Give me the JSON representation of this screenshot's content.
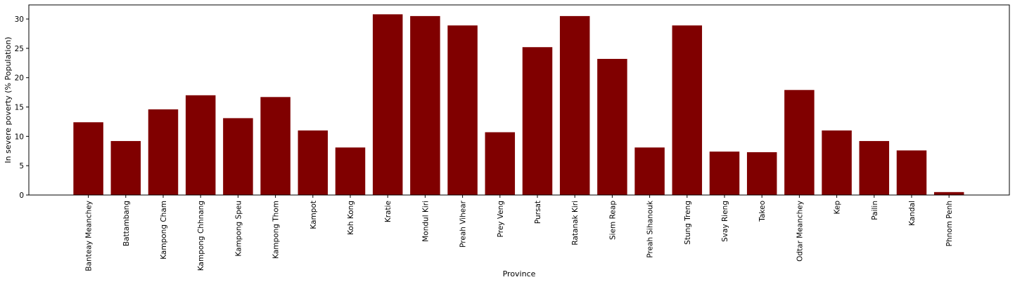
{
  "chart_data": {
    "type": "bar",
    "xlabel": "Province",
    "ylabel": "In severe poverty (% Population)",
    "categories": [
      "Banteay Meanchey",
      "Battambang",
      "Kampong Cham",
      "Kampong Chhnang",
      "Kampong Speu",
      "Kampong Thom",
      "Kampot",
      "Koh Kong",
      "Kratie",
      "Mondul Kiri",
      "Preah Vihear",
      "Prey Veng",
      "Pursat",
      "Ratanak Kiri",
      "Siem Reap",
      "Preah Sihanouk",
      "Stung Treng",
      "Svay Rieng",
      "Takeo",
      "Odtar Meanchey",
      "Kep",
      "Pailin",
      "Kandal",
      "Phnom Penh"
    ],
    "values": [
      12.4,
      9.2,
      14.6,
      17.0,
      13.1,
      16.7,
      11.0,
      8.1,
      30.8,
      30.5,
      28.9,
      10.7,
      25.2,
      30.5,
      23.2,
      8.1,
      28.9,
      7.4,
      7.3,
      17.9,
      11.0,
      9.2,
      7.6,
      0.5
    ],
    "yticks": [
      0,
      5,
      10,
      15,
      20,
      25,
      30
    ],
    "ylim": [
      0,
      32.4
    ],
    "bar_color": "#800000",
    "grid": false,
    "legend": "none"
  }
}
